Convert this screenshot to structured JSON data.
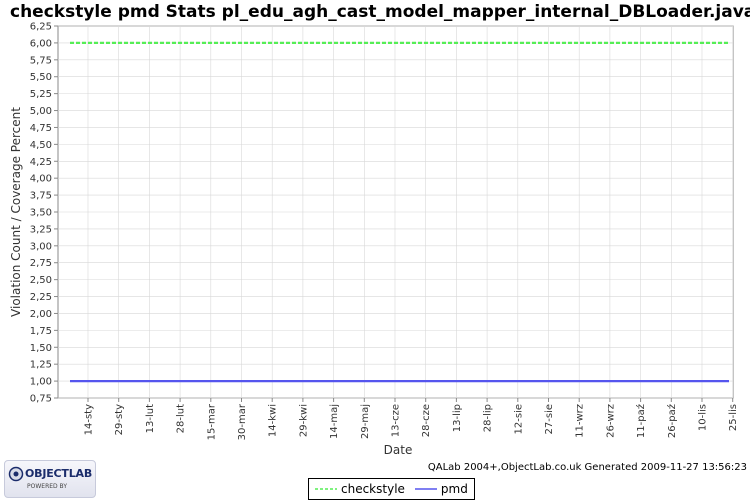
{
  "title": "checkstyle pmd  Stats pl_edu_agh_cast_model_mapper_internal_DBLoader.java",
  "footer": "QALab 2004+,ObjectLab.co.uk Generated 2009-11-27 13:56:23",
  "logo": {
    "name": "OBJECTLAB",
    "tagline": "POWERED BY"
  },
  "colors": {
    "checkstyle": "#55ee55",
    "pmd": "#5555ee",
    "plot_bg": "#ffffff",
    "grid": "#d8d8d8"
  },
  "chart_data": {
    "type": "line",
    "title": "checkstyle pmd  Stats pl_edu_agh_cast_model_mapper_internal_DBLoader.java",
    "xlabel": "Date",
    "ylabel": "Violation Count / Coverage Percent",
    "ylim": [
      0.75,
      6.25
    ],
    "y_ticks": [
      "0,75",
      "1,00",
      "1,25",
      "1,50",
      "1,75",
      "2,00",
      "2,25",
      "2,50",
      "2,75",
      "3,00",
      "3,25",
      "3,50",
      "3,75",
      "4,00",
      "4,25",
      "4,50",
      "4,75",
      "5,00",
      "5,25",
      "5,50",
      "5,75",
      "6,00",
      "6,25"
    ],
    "x_ticks": [
      "14-sty",
      "29-sty",
      "13-lut",
      "28-lut",
      "15-mar",
      "30-mar",
      "14-kwi",
      "29-kwi",
      "14-maj",
      "29-maj",
      "13-cze",
      "28-cze",
      "13-lip",
      "28-lip",
      "12-sie",
      "27-sie",
      "11-wrz",
      "26-wrz",
      "11-paź",
      "26-paź",
      "10-lis",
      "25-lis"
    ],
    "grid": true,
    "legend_position": "bottom",
    "series": [
      {
        "name": "checkstyle",
        "values": [
          6,
          6,
          6,
          6,
          6,
          6,
          6,
          6,
          6,
          6,
          6,
          6,
          6,
          6,
          6,
          6,
          6,
          6,
          6,
          6,
          6,
          6
        ]
      },
      {
        "name": "pmd",
        "values": [
          1,
          1,
          1,
          1,
          1,
          1,
          1,
          1,
          1,
          1,
          1,
          1,
          1,
          1,
          1,
          1,
          1,
          1,
          1,
          1,
          1,
          1
        ]
      }
    ]
  }
}
